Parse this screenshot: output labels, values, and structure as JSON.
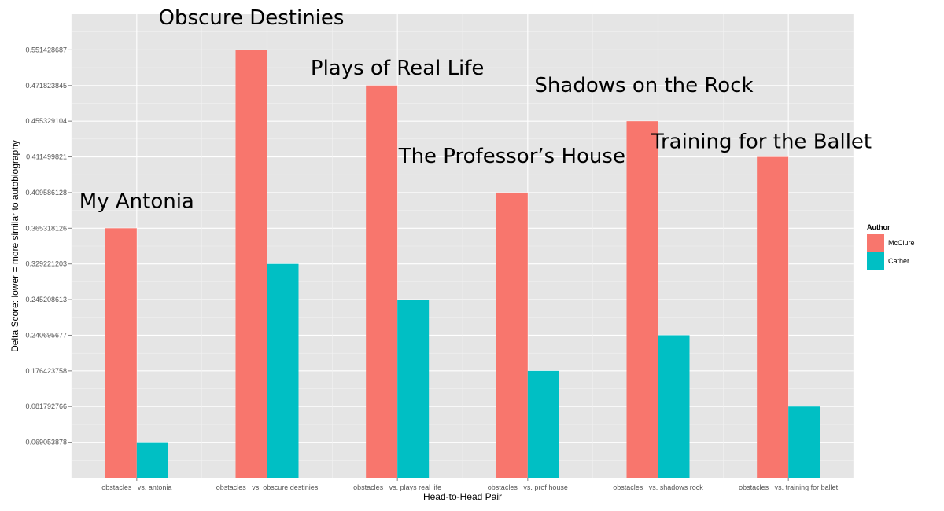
{
  "chart_data": {
    "type": "bar",
    "title": "",
    "xlabel": "Head-to-Head Pair",
    "ylabel": "Delta Score: lower = more similar to autobiography",
    "x_axis_type": "discrete",
    "y_axis_type": "discrete (tick labels shown as values, evenly spaced)",
    "categories": [
      "obstacles   vs. antonia",
      "obstacles   vs. obscure destinies",
      "obstacles   vs. plays real life",
      "obstacles   vs. prof house",
      "obstacles   vs. shadows rock",
      "obstacles   vs. training for ballet"
    ],
    "y_ticks": [
      "0.069053878",
      "0.081792766",
      "0.176423758",
      "0.240695677",
      "0.245208613",
      "0.329221203",
      "0.365318126",
      "0.409586128",
      "0.411499821",
      "0.455329104",
      "0.471823845",
      "0.551428687"
    ],
    "series": [
      {
        "name": "McClure",
        "color": "#F8766D",
        "values": [
          0.365318126,
          0.551428687,
          0.471823845,
          0.409586128,
          0.455329104,
          0.411499821
        ]
      },
      {
        "name": "Cather",
        "color": "#00BFC4",
        "values": [
          0.069053878,
          0.329221203,
          0.245208613,
          0.176423758,
          0.240695677,
          0.081792766
        ]
      }
    ],
    "annotations": [
      "My Antonia",
      "Obscure Destinies",
      "Plays of Real Life",
      "The Professor’s House",
      "Shadows on the Rock",
      "Training for the Ballet"
    ],
    "legend": {
      "title": "Author",
      "position": "right"
    },
    "grid": true
  }
}
